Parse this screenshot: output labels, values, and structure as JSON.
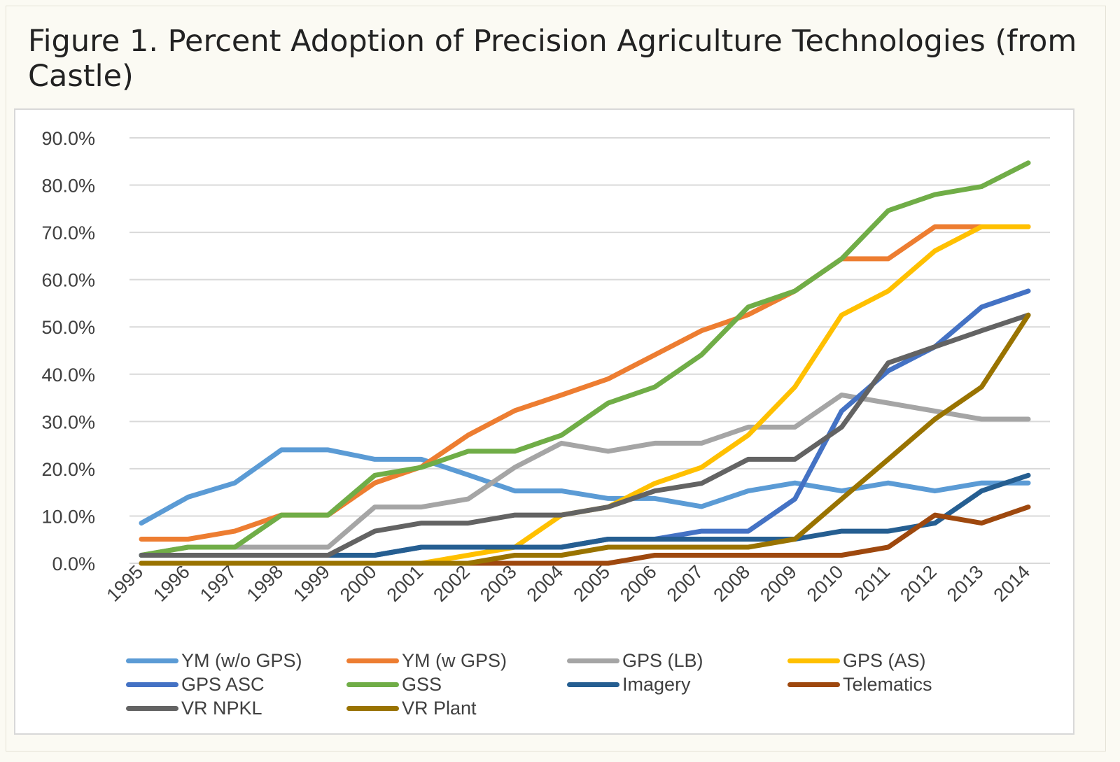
{
  "figure": {
    "title": "Figure 1. Percent Adoption of Precision Agriculture Technologies (from Castle)"
  },
  "chart_data": {
    "type": "line",
    "x": [
      "1995",
      "1996",
      "1997",
      "1998",
      "1999",
      "2000",
      "2001",
      "2002",
      "2003",
      "2004",
      "2005",
      "2006",
      "2007",
      "2008",
      "2009",
      "2010",
      "2011",
      "2012",
      "2013",
      "2014"
    ],
    "ylim": [
      0,
      90
    ],
    "yticks": [
      0,
      10,
      20,
      30,
      40,
      50,
      60,
      70,
      80,
      90
    ],
    "ytick_labels": [
      "0.0%",
      "10.0%",
      "20.0%",
      "30.0%",
      "40.0%",
      "50.0%",
      "60.0%",
      "70.0%",
      "80.0%",
      "90.0%"
    ],
    "grid": "horizontal",
    "legend_position": "bottom",
    "series": [
      {
        "name": "YM (w/o GPS)",
        "color": "#5b9bd5",
        "values": [
          8.5,
          14,
          17,
          24,
          24,
          22,
          22,
          18.7,
          15.3,
          15.3,
          13.7,
          13.7,
          12,
          15.3,
          17,
          15.3,
          17,
          15.3,
          17,
          17
        ]
      },
      {
        "name": "YM (w GPS)",
        "color": "#ed7d31",
        "values": [
          5.1,
          5.1,
          6.8,
          10.2,
          10.2,
          17,
          20.4,
          27.1,
          32.3,
          35.6,
          39,
          44.1,
          49.2,
          52.6,
          57.6,
          64.4,
          64.4,
          71.2,
          71.2,
          71.2
        ]
      },
      {
        "name": "GPS (LB)",
        "color": "#a5a5a5",
        "values": [
          1.7,
          3.4,
          3.4,
          3.4,
          3.4,
          11.9,
          11.9,
          13.6,
          20.3,
          25.4,
          23.7,
          25.4,
          25.4,
          28.8,
          28.8,
          35.6,
          33.9,
          32.2,
          30.5,
          30.5
        ]
      },
      {
        "name": "GPS (AS)",
        "color": "#ffc000",
        "values": [
          0,
          0,
          0,
          0,
          0,
          0,
          0,
          1.7,
          3.4,
          10.2,
          11.9,
          16.9,
          20.3,
          27.1,
          37.3,
          52.5,
          57.6,
          66.1,
          71.2,
          71.2
        ]
      },
      {
        "name": "GPS ASC",
        "color": "#4472c4",
        "values": [
          1.7,
          1.7,
          1.7,
          1.7,
          1.7,
          1.7,
          3.4,
          3.4,
          3.4,
          3.4,
          5.1,
          5.1,
          6.8,
          6.8,
          13.6,
          32.2,
          40.7,
          45.8,
          54.2,
          57.6
        ]
      },
      {
        "name": "GSS",
        "color": "#70ad47",
        "values": [
          1.7,
          3.4,
          3.4,
          10.2,
          10.2,
          18.6,
          20.3,
          23.7,
          23.7,
          27.1,
          33.9,
          37.3,
          44.1,
          54.2,
          57.6,
          64.4,
          74.6,
          78,
          79.7,
          84.7
        ]
      },
      {
        "name": "Imagery",
        "color": "#255e91",
        "values": [
          1.7,
          1.7,
          1.7,
          1.7,
          1.7,
          1.7,
          3.4,
          3.4,
          3.4,
          3.4,
          5.1,
          5.1,
          5.1,
          5.1,
          5.1,
          6.8,
          6.8,
          8.5,
          15.3,
          18.6
        ]
      },
      {
        "name": "Telematics",
        "color": "#9e480e",
        "values": [
          0,
          0,
          0,
          0,
          0,
          0,
          0,
          0,
          0,
          0,
          0,
          1.7,
          1.7,
          1.7,
          1.7,
          1.7,
          3.4,
          10.2,
          8.5,
          11.9
        ]
      },
      {
        "name": "VR NPKL",
        "color": "#636363",
        "values": [
          1.7,
          1.7,
          1.7,
          1.7,
          1.7,
          6.8,
          8.5,
          8.5,
          10.2,
          10.2,
          11.9,
          15.3,
          16.9,
          22,
          22,
          28.8,
          42.4,
          45.8,
          49.2,
          52.5
        ]
      },
      {
        "name": "VR Plant",
        "color": "#997300",
        "values": [
          0,
          0,
          0,
          0,
          0,
          0,
          0,
          0,
          1.7,
          1.7,
          3.4,
          3.4,
          3.4,
          3.4,
          5.1,
          13.6,
          22,
          30.5,
          37.3,
          52.5
        ]
      }
    ]
  }
}
